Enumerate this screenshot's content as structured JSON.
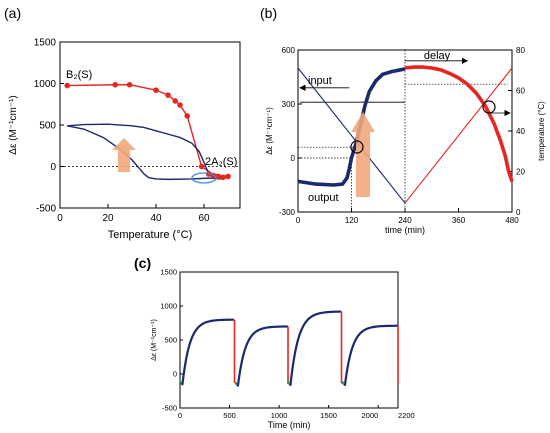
{
  "panels": [
    {
      "label": "(a)",
      "xlabel": "Temperature (°C)",
      "ylabel": "Δε (M⁻¹cm⁻¹)",
      "xlim": [
        0,
        75
      ],
      "ylim": [
        -500,
        1500
      ],
      "xticks": [
        0,
        20,
        40,
        60
      ],
      "yticks": [
        -500,
        0,
        500,
        1000,
        1500
      ],
      "annotations": [
        {
          "text": "B₂(S)",
          "x": 3,
          "y": 1090
        },
        {
          "text": "2A₂(S)",
          "x": 62,
          "y": -5
        }
      ]
    },
    {
      "label": "(b)",
      "xlabel": "time (min)",
      "ylabel": "Δε (M⁻¹cm⁻¹)",
      "y2label": "temperature (°C)",
      "xlim": [
        0,
        480
      ],
      "ylim": [
        -300,
        600
      ],
      "y2lim": [
        0,
        80
      ],
      "xticks": [
        0,
        120,
        240,
        360,
        480
      ],
      "yticks": [
        -300,
        0,
        300,
        600
      ],
      "y2ticks": [
        0,
        20,
        40,
        60,
        80
      ],
      "annotations": [
        {
          "text": "input",
          "x": 25,
          "y": 385
        },
        {
          "text": "output",
          "x": 25,
          "y": -230
        },
        {
          "text": "delay",
          "x": 290,
          "y": 560
        }
      ]
    },
    {
      "label": "(c)",
      "xlabel": "Time (min)",
      "ylabel": "Δε (M⁻¹cm⁻¹)",
      "xlim": [
        0,
        2200
      ],
      "ylim": [
        -500,
        1500
      ],
      "xticks": [
        0,
        500,
        1000,
        1500,
        2000,
        2200
      ],
      "yticks": [
        -500,
        0,
        500,
        1000,
        1500
      ]
    }
  ],
  "colors": {
    "red": "#e8251f",
    "navy": "#1b2a6e",
    "blue_line": "#2e4a8f",
    "arrow": "#f0a77a",
    "ellipse": "#3a8fd8"
  },
  "chart_data": [
    {
      "type": "scatter",
      "panel": "(a)",
      "series": [
        {
          "name": "B₂(S)",
          "color": "#e8251f",
          "kind": "line+markers",
          "x": [
            3,
            23,
            29,
            40,
            45,
            48,
            50,
            53,
            59,
            65
          ],
          "y": [
            975,
            985,
            985,
            920,
            860,
            790,
            740,
            610,
            0,
            -120
          ]
        },
        {
          "name": "",
          "color": "#1b2a6e",
          "kind": "line",
          "x": [
            3,
            10,
            20,
            30,
            35,
            40,
            45,
            50,
            55,
            58,
            60,
            62,
            64,
            66,
            68
          ],
          "y": [
            490,
            505,
            510,
            490,
            470,
            430,
            390,
            350,
            280,
            180,
            50,
            -90,
            -140,
            -150,
            -145
          ]
        },
        {
          "name": "",
          "color": "#1b2a6e",
          "kind": "line",
          "x": [
            3,
            10,
            18,
            25,
            30,
            33,
            35,
            37,
            40,
            45,
            55,
            62,
            68
          ],
          "y": [
            490,
            450,
            350,
            210,
            80,
            -20,
            -90,
            -135,
            -150,
            -155,
            -150,
            -140,
            -140
          ]
        },
        {
          "name": "",
          "color": "#e8251f",
          "kind": "line+markers",
          "x": [
            62,
            64,
            66,
            68,
            70
          ],
          "y": [
            -90,
            -110,
            -120,
            -130,
            -120
          ]
        }
      ]
    },
    {
      "type": "line",
      "panel": "(b)",
      "series": [
        {
          "name": "output",
          "color": "#1b2a6e",
          "kind": "thick",
          "axis": "left",
          "x": [
            0,
            40,
            80,
            100,
            110,
            115,
            120,
            130,
            140,
            150,
            160,
            175,
            190,
            210,
            230,
            240
          ],
          "y": [
            -130,
            -145,
            -150,
            -145,
            -110,
            -60,
            0,
            80,
            180,
            290,
            370,
            430,
            465,
            480,
            490,
            495
          ]
        },
        {
          "name": "",
          "color": "#e8251f",
          "kind": "thick",
          "axis": "left",
          "x": [
            240,
            260,
            280,
            300,
            320,
            340,
            360,
            380,
            400,
            420,
            440,
            455,
            465,
            472,
            480
          ],
          "y": [
            500,
            505,
            505,
            500,
            490,
            470,
            445,
            410,
            360,
            290,
            190,
            90,
            10,
            -70,
            -130
          ]
        },
        {
          "name": "input",
          "color": "#1b2a6e",
          "kind": "thin",
          "axis": "right",
          "x": [
            0,
            240
          ],
          "y": [
            71.1,
            4.4
          ]
        },
        {
          "name": "",
          "color": "#e8251f",
          "kind": "thin",
          "axis": "right",
          "x": [
            240,
            480
          ],
          "y": [
            4.4,
            71.1
          ]
        }
      ]
    },
    {
      "type": "line",
      "panel": "(c)",
      "series": [
        {
          "name": "",
          "color": "#1b2a6e",
          "kind": "cycle",
          "x0": 0,
          "x1": 550,
          "ymin": -150,
          "ymax": 800,
          "tau": 75
        },
        {
          "name": "",
          "color": "#1b2a6e",
          "kind": "cycle",
          "x0": 560,
          "x1": 1090,
          "ymin": -170,
          "ymax": 700,
          "tau": 75
        },
        {
          "name": "",
          "color": "#1b2a6e",
          "kind": "cycle",
          "x0": 1090,
          "x1": 1630,
          "ymin": -160,
          "ymax": 920,
          "tau": 80
        },
        {
          "name": "",
          "color": "#1b2a6e",
          "kind": "cycle",
          "x0": 1640,
          "x1": 2200,
          "ymin": -160,
          "ymax": 710,
          "tau": 75
        }
      ]
    }
  ]
}
